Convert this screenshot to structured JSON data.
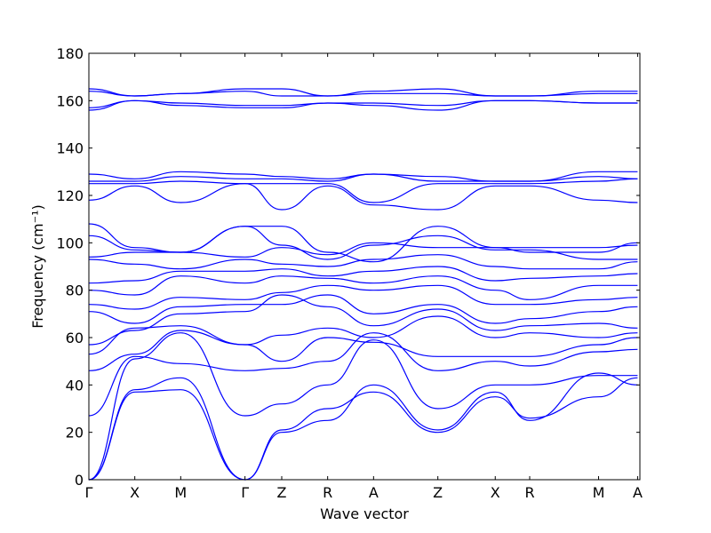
{
  "chart_data": {
    "type": "line",
    "xlabel": "Wave vector",
    "ylabel": "Frequency (cm⁻¹)",
    "ylim": [
      0,
      180
    ],
    "yticks": [
      0,
      20,
      40,
      60,
      80,
      100,
      120,
      140,
      160,
      180
    ],
    "xlim": [
      0,
      12
    ],
    "kpoints": [
      {
        "label": "Γ",
        "x": 0
      },
      {
        "label": "X",
        "x": 1
      },
      {
        "label": "M",
        "x": 2
      },
      {
        "label": "Γ",
        "x": 3.4
      },
      {
        "label": "Z",
        "x": 4.2
      },
      {
        "label": "R",
        "x": 5.2
      },
      {
        "label": "A",
        "x": 6.2
      },
      {
        "label": "Z",
        "x": 7.6
      },
      {
        "label": "X",
        "x": 8.85
      },
      {
        "label": "R",
        "x": 9.6
      },
      {
        "label": "M",
        "x": 11.1
      },
      {
        "label": "A",
        "x": 11.95
      }
    ],
    "line_color": "#0000ff",
    "grid": false,
    "series": [
      {
        "x": [
          0,
          1,
          2,
          3.4,
          4.2,
          5.2,
          6.2,
          7.6,
          8.85,
          9.6,
          11.1,
          11.95
        ],
        "y": [
          0,
          37,
          38,
          0,
          20,
          25,
          40,
          21,
          37,
          25,
          45,
          40
        ]
      },
      {
        "x": [
          0,
          1,
          2,
          3.4,
          4.2,
          5.2,
          6.2,
          7.6,
          8.85,
          9.6,
          11.1,
          11.95
        ],
        "y": [
          0,
          38,
          43,
          0,
          21,
          30,
          37,
          20,
          35,
          26,
          35,
          43
        ]
      },
      {
        "x": [
          0,
          1,
          2,
          3.4,
          4.2,
          5.2,
          6.2,
          7.6,
          8.85,
          9.6,
          11.1,
          11.95
        ],
        "y": [
          0,
          51,
          62,
          27,
          32,
          40,
          59,
          30,
          40,
          40,
          44,
          44
        ]
      },
      {
        "x": [
          0,
          1,
          2,
          3.4,
          4.2,
          5.2,
          6.2,
          7.6,
          8.85,
          9.6,
          11.1,
          11.95
        ],
        "y": [
          27,
          52,
          49,
          46,
          47,
          50,
          62,
          46,
          50,
          48,
          54,
          55
        ]
      },
      {
        "x": [
          0,
          1,
          2,
          3.4,
          4.2,
          5.2,
          6.2,
          7.6,
          8.85,
          9.6,
          11.1,
          11.95
        ],
        "y": [
          46,
          53,
          63,
          57,
          50,
          60,
          58,
          52,
          52,
          52,
          57,
          60
        ]
      },
      {
        "x": [
          0,
          1,
          2,
          3.4,
          4.2,
          5.2,
          6.2,
          7.6,
          8.85,
          9.6,
          11.1,
          11.95
        ],
        "y": [
          53,
          64,
          65,
          57,
          61,
          64,
          60,
          69,
          60,
          62,
          60,
          62
        ]
      },
      {
        "x": [
          0,
          1,
          2,
          3.4,
          4.2,
          5.2,
          6.2,
          7.6,
          8.85,
          9.6,
          11.1,
          11.95
        ],
        "y": [
          57,
          63,
          70,
          71,
          78,
          73,
          65,
          72,
          63,
          65,
          66,
          64
        ]
      },
      {
        "x": [
          0,
          1,
          2,
          3.4,
          4.2,
          5.2,
          6.2,
          7.6,
          8.85,
          9.6,
          11.1,
          11.95
        ],
        "y": [
          71,
          66,
          73,
          74,
          74,
          78,
          70,
          74,
          66,
          68,
          71,
          73
        ]
      },
      {
        "x": [
          0,
          1,
          2,
          3.4,
          4.2,
          5.2,
          6.2,
          7.6,
          8.85,
          9.6,
          11.1,
          11.95
        ],
        "y": [
          74,
          72,
          77,
          76,
          79,
          82,
          80,
          82,
          74,
          74,
          76,
          77
        ]
      },
      {
        "x": [
          0,
          1,
          2,
          3.4,
          4.2,
          5.2,
          6.2,
          7.6,
          8.85,
          9.6,
          11.1,
          11.95
        ],
        "y": [
          80,
          78,
          86,
          83,
          86,
          85,
          83,
          86,
          80,
          76,
          82,
          82
        ]
      },
      {
        "x": [
          0,
          1,
          2,
          3.4,
          4.2,
          5.2,
          6.2,
          7.6,
          8.85,
          9.6,
          11.1,
          11.95
        ],
        "y": [
          83,
          84,
          88,
          88,
          89,
          86,
          88,
          90,
          84,
          85,
          86,
          87
        ]
      },
      {
        "x": [
          0,
          1,
          2,
          3.4,
          4.2,
          5.2,
          6.2,
          7.6,
          8.85,
          9.6,
          11.1,
          11.95
        ],
        "y": [
          93,
          91,
          89,
          93,
          91,
          90,
          93,
          95,
          90,
          89,
          89,
          92
        ]
      },
      {
        "x": [
          0,
          1,
          2,
          3.4,
          4.2,
          5.2,
          6.2,
          7.6,
          8.85,
          9.6,
          11.1,
          11.95
        ],
        "y": [
          94,
          96,
          96,
          94,
          98,
          95,
          100,
          98,
          98,
          96,
          96,
          100
        ]
      },
      {
        "x": [
          0,
          1,
          2,
          3.4,
          4.2,
          5.2,
          6.2,
          7.6,
          8.85,
          9.6,
          11.1,
          11.95
        ],
        "y": [
          103,
          97,
          96,
          107,
          99,
          93,
          99,
          103,
          97,
          97,
          93,
          93
        ]
      },
      {
        "x": [
          0,
          1,
          2,
          3.4,
          4.2,
          5.2,
          6.2,
          7.6,
          8.85,
          9.6,
          11.1,
          11.95
        ],
        "y": [
          108,
          98,
          96,
          107,
          107,
          96,
          92,
          107,
          98,
          98,
          98,
          99
        ]
      },
      {
        "x": [
          0,
          1,
          2,
          3.4,
          4.2,
          5.2,
          6.2,
          7.6,
          8.85,
          9.6,
          11.1,
          11.95
        ],
        "y": [
          118,
          124,
          117,
          125,
          114,
          124,
          116,
          114,
          124,
          124,
          118,
          117
        ]
      },
      {
        "x": [
          0,
          1,
          2,
          3.4,
          4.2,
          5.2,
          6.2,
          7.6,
          8.85,
          9.6,
          11.1,
          11.95
        ],
        "y": [
          125,
          125,
          126,
          125,
          125,
          125,
          117,
          125,
          125,
          125,
          126,
          127
        ]
      },
      {
        "x": [
          0,
          1,
          2,
          3.4,
          4.2,
          5.2,
          6.2,
          7.6,
          8.85,
          9.6,
          11.1,
          11.95
        ],
        "y": [
          126,
          126,
          128,
          127,
          127,
          126,
          129,
          126,
          126,
          126,
          128,
          127
        ]
      },
      {
        "x": [
          0,
          1,
          2,
          3.4,
          4.2,
          5.2,
          6.2,
          7.6,
          8.85,
          9.6,
          11.1,
          11.95
        ],
        "y": [
          129,
          127,
          130,
          129,
          128,
          127,
          129,
          128,
          126,
          126,
          130,
          130
        ]
      },
      {
        "x": [
          0,
          1,
          2,
          3.4,
          4.2,
          5.2,
          6.2,
          7.6,
          8.85,
          9.6,
          11.1,
          11.95
        ],
        "y": [
          156,
          160,
          158,
          157,
          157,
          159,
          158,
          156,
          160,
          160,
          159,
          159
        ]
      },
      {
        "x": [
          0,
          1,
          2,
          3.4,
          4.2,
          5.2,
          6.2,
          7.6,
          8.85,
          9.6,
          11.1,
          11.95
        ],
        "y": [
          157,
          160,
          159,
          158,
          158,
          159,
          159,
          158,
          160,
          160,
          159,
          159
        ]
      },
      {
        "x": [
          0,
          1,
          2,
          3.4,
          4.2,
          5.2,
          6.2,
          7.6,
          8.85,
          9.6,
          11.1,
          11.95
        ],
        "y": [
          164,
          162,
          163,
          164,
          162,
          162,
          163,
          163,
          162,
          162,
          163,
          163
        ]
      },
      {
        "x": [
          0,
          1,
          2,
          3.4,
          4.2,
          5.2,
          6.2,
          7.6,
          8.85,
          9.6,
          11.1,
          11.95
        ],
        "y": [
          165,
          162,
          163,
          165,
          165,
          162,
          164,
          165,
          162,
          162,
          164,
          164
        ]
      }
    ]
  }
}
